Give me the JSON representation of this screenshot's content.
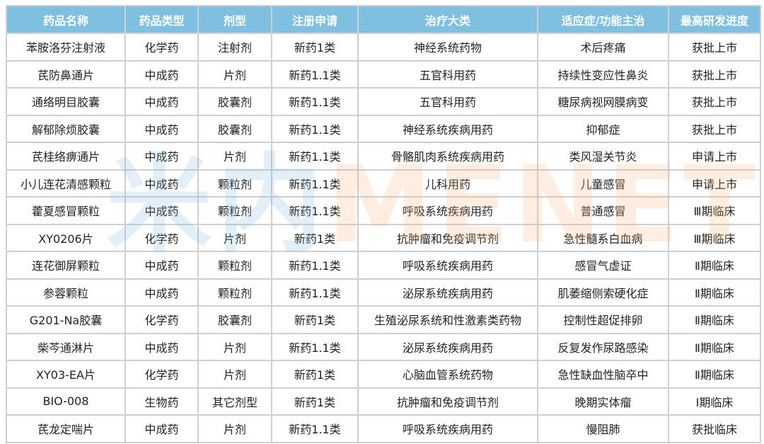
{
  "table": {
    "headers": [
      "药品名称",
      "药品类型",
      "剂型",
      "注册申请",
      "治疗大类",
      "适应症/功能主治",
      "最高研发进度"
    ],
    "rows": [
      [
        "苯胺洛芬注射液",
        "化学药",
        "注射剂",
        "新药1类",
        "神经系统药物",
        "术后疼痛",
        "获批上市"
      ],
      [
        "芪防鼻通片",
        "中成药",
        "片剂",
        "新药1.1类",
        "五官科用药",
        "持续性变应性鼻炎",
        "获批上市"
      ],
      [
        "通络明目胶囊",
        "中成药",
        "胶囊剂",
        "新药1.1类",
        "五官科用药",
        "糖尿病视网膜病变",
        "获批上市"
      ],
      [
        "解郁除烦胶囊",
        "中成药",
        "胶囊剂",
        "新药1.1类",
        "神经系统疾病用药",
        "抑郁症",
        "获批上市"
      ],
      [
        "芪桂络痹通片",
        "中成药",
        "片剂",
        "新药1.1类",
        "骨骼肌肉系统疾病用药",
        "类风湿关节炎",
        "申请上市"
      ],
      [
        "小儿连花清感颗粒",
        "中成药",
        "颗粒剂",
        "新药1.1类",
        "儿科用药",
        "儿童感冒",
        "申请上市"
      ],
      [
        "藿夏感冒颗粒",
        "中成药",
        "颗粒剂",
        "新药1.1类",
        "呼吸系统疾病用药",
        "普通感冒",
        "Ⅲ期临床"
      ],
      [
        "XY0206片",
        "化学药",
        "片剂",
        "新药1类",
        "抗肿瘤和免疫调节剂",
        "急性髓系白血病",
        "Ⅲ期临床"
      ],
      [
        "连花御屏颗粒",
        "中成药",
        "颗粒剂",
        "新药1.1类",
        "呼吸系统疾病用药",
        "感冒气虚证",
        "Ⅱ期临床"
      ],
      [
        "参蓉颗粒",
        "中成药",
        "颗粒剂",
        "新药1.1类",
        "泌尿系统疾病用药",
        "肌萎缩侧索硬化症",
        "Ⅱ期临床"
      ],
      [
        "G201-Na胶囊",
        "化学药",
        "胶囊剂",
        "新药1类",
        "生殖泌尿系统和性激素类药物",
        "控制性超促排卵",
        "Ⅱ期临床"
      ],
      [
        "柴芩通淋片",
        "中成药",
        "片剂",
        "新药1.1类",
        "泌尿系统疾病用药",
        "反复发作尿路感染",
        "Ⅱ期临床"
      ],
      [
        "XY03-EA片",
        "化学药",
        "片剂",
        "新药1类",
        "心脑血管系统药物",
        "急性缺血性脑卒中",
        "Ⅱ期临床"
      ],
      [
        "BIO-008",
        "生物药",
        "其它剂型",
        "新药1类",
        "抗肿瘤和免疫调节剂",
        "晚期实体瘤",
        "Ⅰ期临床"
      ],
      [
        "芪龙定喘片",
        "中成药",
        "片剂",
        "新药1.1类",
        "呼吸系统疾病用药",
        "慢阻肺",
        "获批临床"
      ]
    ]
  },
  "watermark": {
    "part1": "米内",
    "part2": "MENET"
  },
  "colors": {
    "header_bg": "#7fbfe0",
    "header_text": "#ffffff",
    "border": "#cfcfcf"
  }
}
